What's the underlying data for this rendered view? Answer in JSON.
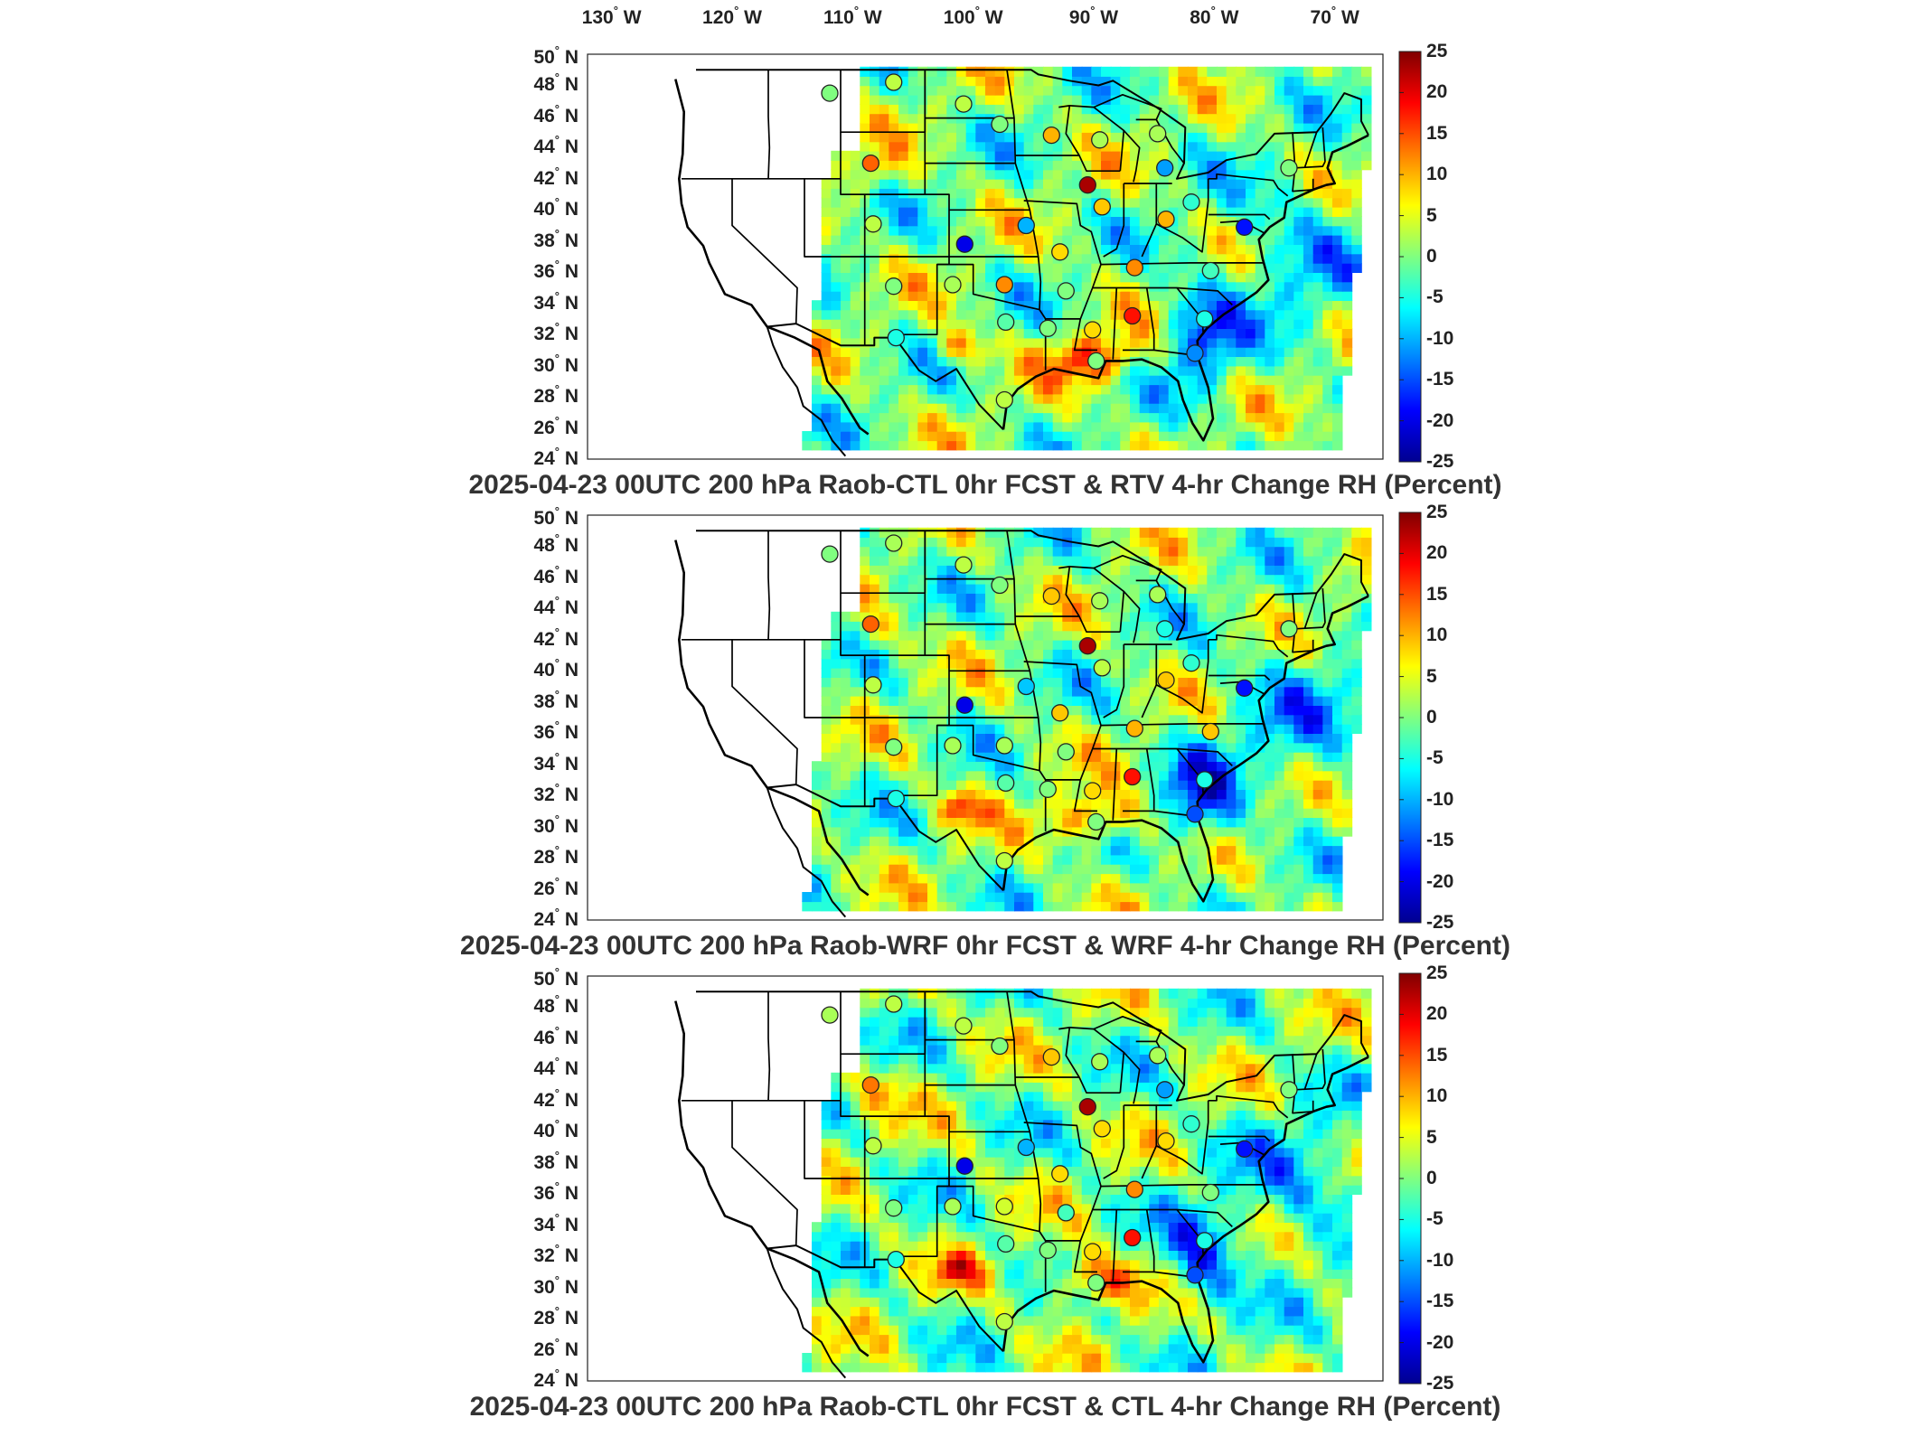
{
  "figure": {
    "lon_labels": [
      "130",
      "120",
      "110",
      "100",
      "90",
      "80",
      "70"
    ],
    "lon_suffix": "W",
    "lat_labels": [
      "50",
      "48",
      "46",
      "44",
      "42",
      "40",
      "38",
      "36",
      "34",
      "32",
      "30",
      "28",
      "26",
      "24"
    ],
    "lat_suffix": "N",
    "degree_symbol": "°",
    "colorbar_ticks": [
      "25",
      "20",
      "15",
      "10",
      "5",
      "0",
      "-5",
      "-10",
      "-15",
      "-20",
      "-25"
    ],
    "colormap": [
      "#00008f",
      "#0000ff",
      "#0080ff",
      "#00ffff",
      "#80ff80",
      "#ffff00",
      "#ff8000",
      "#ff0000",
      "#800000"
    ],
    "panels": [
      {
        "title": "2025-04-23 00UTC 200 hPa Raob-CTL 0hr FCST & RTV 4-hr Change RH (Percent)"
      },
      {
        "title": "2025-04-23 00UTC 200 hPa Raob-WRF 0hr FCST & WRF 4-hr Change RH (Percent)"
      },
      {
        "title": "2025-04-23 00UTC 200 hPa Raob-CTL 0hr FCST & CTL 4-hr Change RH (Percent)"
      }
    ]
  },
  "chart_data": {
    "type": "heatmap",
    "value_range": [
      -25,
      25
    ],
    "units": "Percent",
    "lon_range": [
      -132,
      -66
    ],
    "lat_range": [
      24,
      50
    ],
    "stations": [
      {
        "lon": -111.9,
        "lat": 47.5,
        "values": [
          0,
          0,
          2
        ]
      },
      {
        "lon": -106.6,
        "lat": 48.2,
        "values": [
          3,
          2,
          3
        ]
      },
      {
        "lon": -100.8,
        "lat": 46.8,
        "values": [
          3,
          3,
          3
        ]
      },
      {
        "lon": -97.8,
        "lat": 45.5,
        "values": [
          0,
          0,
          0
        ]
      },
      {
        "lon": -93.5,
        "lat": 44.8,
        "values": [
          10,
          9,
          9
        ]
      },
      {
        "lon": -89.5,
        "lat": 44.5,
        "values": [
          2,
          2,
          2
        ]
      },
      {
        "lon": -84.7,
        "lat": 44.9,
        "values": [
          2,
          2,
          2
        ]
      },
      {
        "lon": -108.5,
        "lat": 43.0,
        "values": [
          14,
          14,
          13
        ]
      },
      {
        "lon": -90.5,
        "lat": 41.6,
        "values": [
          23,
          23,
          23
        ]
      },
      {
        "lon": -84.1,
        "lat": 42.7,
        "values": [
          -11,
          -5,
          -11
        ]
      },
      {
        "lon": -73.8,
        "lat": 42.7,
        "values": [
          0,
          0,
          0
        ]
      },
      {
        "lon": -89.3,
        "lat": 40.2,
        "values": [
          9,
          3,
          8
        ]
      },
      {
        "lon": -81.9,
        "lat": 40.5,
        "values": [
          -4,
          -4,
          -4
        ]
      },
      {
        "lon": -84.0,
        "lat": 39.4,
        "values": [
          10,
          9,
          8
        ]
      },
      {
        "lon": -108.3,
        "lat": 39.1,
        "values": [
          3,
          3,
          3
        ]
      },
      {
        "lon": -100.7,
        "lat": 37.8,
        "values": [
          -20,
          -20,
          -20
        ]
      },
      {
        "lon": -95.6,
        "lat": 39.0,
        "values": [
          -10,
          -9,
          -10
        ]
      },
      {
        "lon": -92.8,
        "lat": 37.3,
        "values": [
          8,
          9,
          8
        ]
      },
      {
        "lon": -77.5,
        "lat": 38.9,
        "values": [
          -18,
          -18,
          -18
        ]
      },
      {
        "lon": -86.6,
        "lat": 36.3,
        "values": [
          12,
          10,
          12
        ]
      },
      {
        "lon": -80.3,
        "lat": 36.1,
        "values": [
          -3,
          9,
          0
        ]
      },
      {
        "lon": -106.6,
        "lat": 35.1,
        "values": [
          0,
          0,
          0
        ]
      },
      {
        "lon": -101.7,
        "lat": 35.2,
        "values": [
          2,
          2,
          2
        ]
      },
      {
        "lon": -97.4,
        "lat": 35.2,
        "values": [
          12,
          2,
          4
        ]
      },
      {
        "lon": -92.3,
        "lat": 34.8,
        "values": [
          0,
          0,
          -3
        ]
      },
      {
        "lon": -97.3,
        "lat": 32.8,
        "values": [
          -2,
          -2,
          -2
        ]
      },
      {
        "lon": -86.8,
        "lat": 33.2,
        "values": [
          18,
          18,
          18
        ]
      },
      {
        "lon": -80.8,
        "lat": 33.0,
        "values": [
          -5,
          -5,
          -5
        ]
      },
      {
        "lon": -93.8,
        "lat": 32.4,
        "values": [
          0,
          0,
          0
        ]
      },
      {
        "lon": -90.1,
        "lat": 32.3,
        "values": [
          8,
          8,
          8
        ]
      },
      {
        "lon": -106.4,
        "lat": 31.8,
        "values": [
          -5,
          -5,
          -5
        ]
      },
      {
        "lon": -81.6,
        "lat": 30.8,
        "values": [
          -12,
          -15,
          -15
        ]
      },
      {
        "lon": -89.8,
        "lat": 30.3,
        "values": [
          0,
          0,
          0
        ]
      },
      {
        "lon": -97.4,
        "lat": 27.8,
        "values": [
          3,
          3,
          3
        ]
      }
    ]
  }
}
